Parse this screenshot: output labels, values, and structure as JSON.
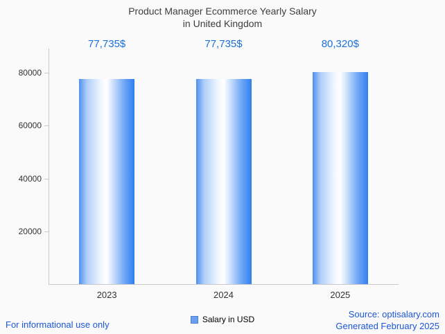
{
  "title": {
    "line1": "Product Manager Ecommerce Yearly Salary",
    "line2": "in United Kingdom"
  },
  "chart_data": {
    "type": "bar",
    "categories": [
      "2023",
      "2024",
      "2025"
    ],
    "values": [
      77735,
      77735,
      80320
    ],
    "value_labels": [
      "77,735$",
      "77,735$",
      "80,320$"
    ],
    "series": [
      {
        "name": "Salary in USD",
        "values": [
          77735,
          77735,
          80320
        ]
      }
    ],
    "title": "Product Manager Ecommerce Yearly Salary in United Kingdom",
    "xlabel": "",
    "ylabel": "",
    "ylim": [
      0,
      80000
    ],
    "yticks": [
      20000,
      40000,
      60000,
      80000
    ],
    "ytick_labels": [
      "20000",
      "40000",
      "60000",
      "80000"
    ],
    "grid": false,
    "legend_position": "bottom"
  },
  "legend": {
    "label": "Salary in USD",
    "swatch_color": "#6d9ff0"
  },
  "footer": {
    "left": "For informational use only",
    "source": "Source: optisalary.com",
    "generated": "Generated February 2025"
  },
  "colors": {
    "value_label_blue": "#1c6fd6",
    "bar_gradient_left": "#4d90f0",
    "bar_gradient_right": "#2e7ef0",
    "axis_gray": "#c9c9c9",
    "title_gray": "#3d3d3d",
    "footer_blue": "#1a56db",
    "background": "#fafafa"
  }
}
